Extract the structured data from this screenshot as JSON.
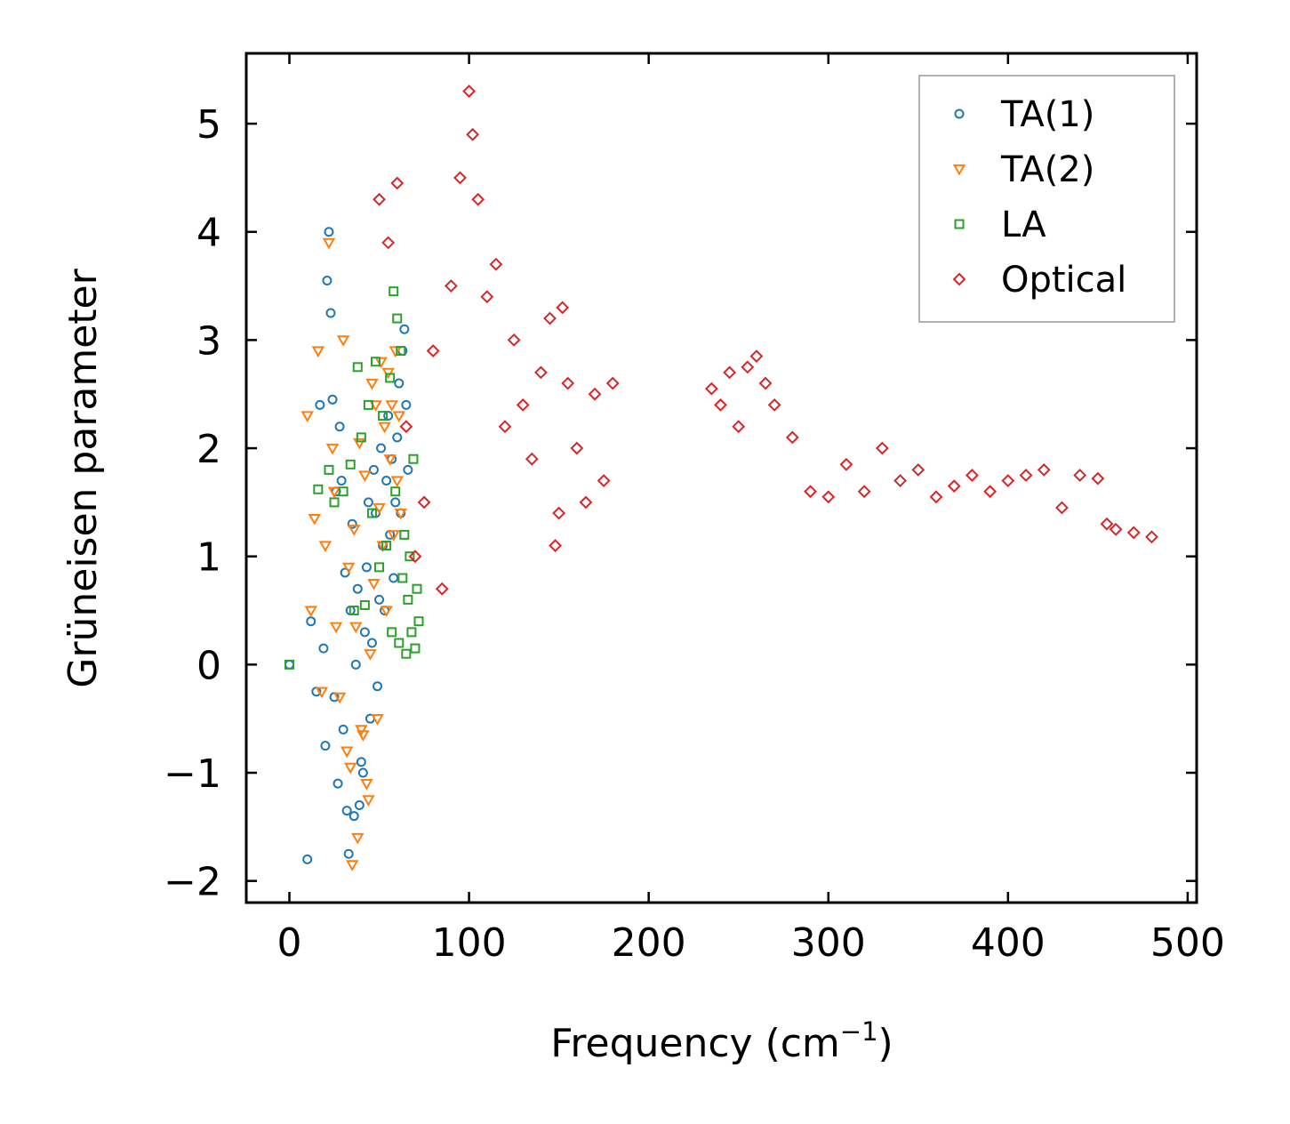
{
  "chart_data": {
    "type": "scatter",
    "title": "",
    "xlabel": "Frequency (cm",
    "xlabel_sup": "−1",
    "xlabel_tail": ")",
    "ylabel": "Grüneisen parameter",
    "xlim": [
      -24,
      505
    ],
    "ylim": [
      -2.2,
      5.65
    ],
    "x_ticks": [
      0,
      100,
      200,
      300,
      400,
      500
    ],
    "y_ticks": [
      -2,
      -1,
      0,
      1,
      2,
      3,
      4,
      5
    ],
    "x_tick_labels": [
      "0",
      "100",
      "200",
      "300",
      "400",
      "500"
    ],
    "y_tick_labels": [
      "−2",
      "−1",
      "0",
      "1",
      "2",
      "3",
      "4",
      "5"
    ],
    "legend_position": "top-right",
    "series": [
      {
        "name": "TA(1)",
        "marker": "circle",
        "color": "#1f77b4",
        "x": [
          0,
          10,
          12,
          15,
          17,
          19,
          20,
          21,
          22,
          23,
          24,
          25,
          26,
          27,
          28,
          29,
          30,
          31,
          32,
          33,
          34,
          35,
          36,
          37,
          38,
          39,
          40,
          41,
          42,
          43,
          44,
          45,
          46,
          47,
          48,
          49,
          50,
          51,
          52,
          53,
          54,
          55,
          56,
          57,
          58,
          59,
          60,
          61,
          62,
          63,
          64,
          65,
          66
        ],
        "y": [
          0.0,
          -1.8,
          0.4,
          -0.25,
          2.4,
          0.15,
          -0.75,
          3.55,
          4.0,
          3.25,
          2.45,
          -0.3,
          1.6,
          -1.1,
          2.2,
          1.7,
          -0.6,
          0.85,
          -1.35,
          -1.75,
          0.5,
          1.3,
          -1.4,
          0.0,
          0.7,
          -1.3,
          -0.9,
          -1.0,
          0.3,
          0.9,
          1.5,
          -0.5,
          0.2,
          1.8,
          1.4,
          -0.2,
          0.6,
          2.0,
          1.1,
          0.5,
          1.7,
          2.3,
          1.2,
          1.9,
          0.8,
          1.5,
          2.1,
          2.6,
          1.4,
          2.9,
          3.1,
          2.4,
          1.8
        ]
      },
      {
        "name": "TA(2)",
        "marker": "triangle-down",
        "color": "#ff7f0e",
        "x": [
          10,
          12,
          14,
          16,
          18,
          20,
          22,
          24,
          25,
          26,
          28,
          30,
          32,
          33,
          34,
          35,
          36,
          37,
          38,
          39,
          40,
          41,
          42,
          43,
          44,
          45,
          46,
          47,
          48,
          49,
          50,
          51,
          52,
          53,
          54,
          55,
          56,
          57,
          58,
          59,
          60,
          61,
          62
        ],
        "y": [
          2.3,
          0.5,
          1.35,
          2.9,
          -0.25,
          1.1,
          3.9,
          2.0,
          1.6,
          0.35,
          -0.3,
          3.0,
          -0.8,
          0.9,
          -0.95,
          -1.85,
          1.25,
          0.35,
          -1.6,
          2.05,
          -0.6,
          -0.65,
          1.75,
          -1.1,
          -1.25,
          0.1,
          2.6,
          0.75,
          2.4,
          -0.5,
          1.45,
          2.8,
          1.1,
          2.2,
          0.5,
          2.7,
          1.9,
          2.4,
          1.2,
          2.9,
          1.7,
          2.3,
          1.4
        ]
      },
      {
        "name": "LA",
        "marker": "square",
        "color": "#2ca02c",
        "x": [
          0,
          16,
          22,
          25,
          30,
          34,
          36,
          38,
          40,
          42,
          44,
          46,
          48,
          50,
          52,
          54,
          56,
          57,
          58,
          59,
          60,
          61,
          62,
          63,
          64,
          65,
          66,
          67,
          68,
          69,
          70,
          71,
          72
        ],
        "y": [
          0.0,
          1.62,
          1.8,
          1.5,
          1.6,
          1.85,
          0.5,
          2.75,
          2.1,
          0.55,
          2.4,
          1.4,
          2.8,
          0.9,
          2.3,
          1.1,
          2.65,
          0.3,
          3.45,
          1.6,
          3.2,
          0.2,
          2.9,
          0.8,
          1.2,
          0.1,
          0.6,
          1.0,
          0.3,
          1.9,
          0.15,
          0.7,
          0.4
        ]
      },
      {
        "name": "Optical",
        "marker": "diamond",
        "color": "#d62728",
        "x": [
          50,
          55,
          60,
          65,
          70,
          75,
          80,
          85,
          90,
          95,
          100,
          102,
          105,
          110,
          115,
          120,
          125,
          130,
          135,
          140,
          145,
          148,
          150,
          152,
          155,
          160,
          165,
          170,
          175,
          180,
          235,
          240,
          245,
          250,
          255,
          260,
          265,
          270,
          280,
          290,
          300,
          310,
          320,
          330,
          340,
          350,
          360,
          370,
          380,
          390,
          400,
          410,
          420,
          430,
          440,
          450,
          455,
          460,
          470,
          480
        ],
        "y": [
          4.3,
          3.9,
          4.45,
          2.2,
          1.0,
          1.5,
          2.9,
          0.7,
          3.5,
          4.5,
          5.3,
          4.9,
          4.3,
          3.4,
          3.7,
          2.2,
          3.0,
          2.4,
          1.9,
          2.7,
          3.2,
          1.1,
          1.4,
          3.3,
          2.6,
          2.0,
          1.5,
          2.5,
          1.7,
          2.6,
          2.55,
          2.4,
          2.7,
          2.2,
          2.75,
          2.85,
          2.6,
          2.4,
          2.1,
          1.6,
          1.55,
          1.85,
          1.6,
          2.0,
          1.7,
          1.8,
          1.55,
          1.65,
          1.75,
          1.6,
          1.7,
          1.75,
          1.8,
          1.45,
          1.75,
          1.72,
          1.3,
          1.25,
          1.22,
          1.18
        ]
      }
    ]
  }
}
